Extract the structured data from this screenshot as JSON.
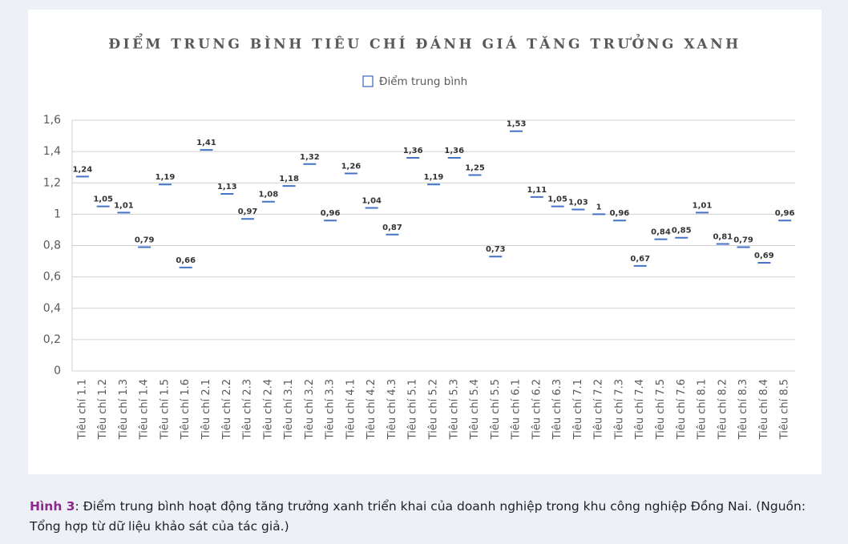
{
  "chart_data": {
    "type": "marker",
    "title": "ĐIỂM TRUNG BÌNH TIÊU CHÍ ĐÁNH GIÁ TĂNG TRƯỞNG XANH",
    "categories": [
      "Tiêu chí 1.1",
      "Tiêu chí 1.2",
      "Tiêu chí 1.3",
      "Tiêu chí 1.4",
      "Tiêu chí 1.5",
      "Tiêu chí 1.6",
      "Tiêu chí 2.1",
      "Tiêu chí 2.2",
      "Tiêu chí 2.3",
      "Tiêu chí 2.4",
      "Tiêu chí 3.1",
      "Tiêu chí 3.2",
      "Tiêu chí 3.3",
      "Tiêu chí 4.1",
      "Tiêu chí 4.2",
      "Tiêu chí 4.3",
      "Tiêu chí 5.1",
      "Tiêu chí 5.2",
      "Tiêu chí 5.3",
      "Tiêu chí 5.4",
      "Tiêu chí 5.5",
      "Tiêu chí 6.1",
      "Tiêu chí 6.2",
      "Tiêu chí 6.3",
      "Tiêu chí 7.1",
      "Tiêu chí 7.2",
      "Tiêu chí 7.3",
      "Tiêu chí 7.4",
      "Tiêu chí 7.5",
      "Tiêu chí 7.6",
      "Tiêu chí 8.1",
      "Tiêu chí 8.2",
      "Tiêu chí 8.3",
      "Tiêu chí 8.4",
      "Tiêu chí 8.5"
    ],
    "series": [
      {
        "name": "Điểm trung bình",
        "color": "#4472c4",
        "values": [
          1.24,
          1.05,
          1.01,
          0.79,
          1.19,
          0.66,
          1.41,
          1.13,
          0.97,
          1.08,
          1.18,
          1.32,
          0.96,
          1.26,
          1.04,
          0.87,
          1.36,
          1.19,
          1.36,
          1.25,
          0.73,
          1.53,
          1.11,
          1.05,
          1.03,
          1,
          0.96,
          0.67,
          0.84,
          0.85,
          1.01,
          0.81,
          0.79,
          0.69,
          0.96
        ],
        "value_labels": [
          "1,24",
          "1,05",
          "1,01",
          "0,79",
          "1,19",
          "0,66",
          "1,41",
          "1,13",
          "0,97",
          "1,08",
          "1,18",
          "1,32",
          "0,96",
          "1,26",
          "1,04",
          "0,87",
          "1,36",
          "1,19",
          "1,36",
          "1,25",
          "0,73",
          "1,53",
          "1,11",
          "1,05",
          "1,03",
          "1",
          "0,96",
          "0,67",
          "0,84",
          "0,85",
          "1,01",
          "0,81",
          "0,79",
          "0,69",
          "0,96"
        ]
      }
    ],
    "ylim": [
      0,
      1.6
    ],
    "yticks": [
      0,
      {
        "value": 0.2,
        "label": "0,2"
      },
      {
        "value": 0.4,
        "label": "0,4"
      },
      {
        "value": 0.6,
        "label": "0,6"
      },
      {
        "value": 0.8,
        "label": "0,8"
      },
      1,
      {
        "value": 1.2,
        "label": "1,2"
      },
      {
        "value": 1.4,
        "label": "1,4"
      },
      {
        "value": 1.6,
        "label": "1,6"
      }
    ],
    "grid": true,
    "legend": "top"
  },
  "caption": {
    "label": "Hình 3",
    "text": ": Điểm trung bình hoạt động tăng trưởng xanh triển khai của doanh nghiệp trong khu công nghiệp Đồng Nai. (Nguồn: Tổng hợp từ dữ liệu khảo sát của tác giả.)"
  }
}
